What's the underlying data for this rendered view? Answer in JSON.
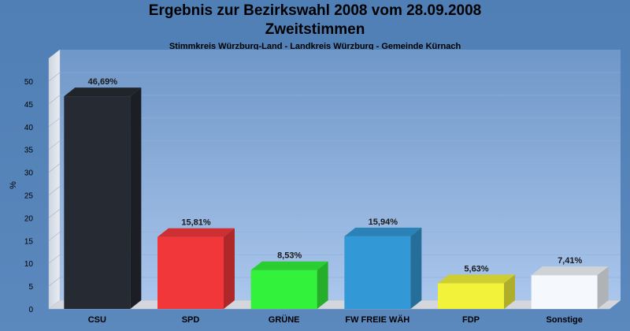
{
  "header": {
    "title": "Ergebnis zur Bezirkswahl 2008 vom 28.09.2008",
    "subtitle": "Zweitstimmen",
    "subsubtitle": "Stimmkreis Würzburg-Land - Landkreis Würzburg - Gemeinde Kürnach"
  },
  "chart_data": {
    "type": "bar",
    "title": "Ergebnis zur Bezirkswahl 2008 vom 28.09.2008",
    "subtitle": "Zweitstimmen",
    "ylabel": "%",
    "xlabel": "",
    "ylim": [
      0,
      50
    ],
    "yticks": [
      0,
      5,
      10,
      15,
      20,
      25,
      30,
      35,
      40,
      45,
      50
    ],
    "categories": [
      "CSU",
      "SPD",
      "GRÜNE",
      "FW FREIE WÄH",
      "FDP",
      "Sonstige"
    ],
    "values": [
      46.69,
      15.81,
      8.53,
      15.94,
      5.63,
      7.41
    ],
    "data_labels": [
      "46,69%",
      "15,81%",
      "8,53%",
      "15,94%",
      "5,63%",
      "7,41%"
    ],
    "colors": [
      "#262a33",
      "#f2373b",
      "#33f23b",
      "#3399d6",
      "#f2f23b",
      "#f5f8fc"
    ],
    "grid": true,
    "legend": "none"
  }
}
